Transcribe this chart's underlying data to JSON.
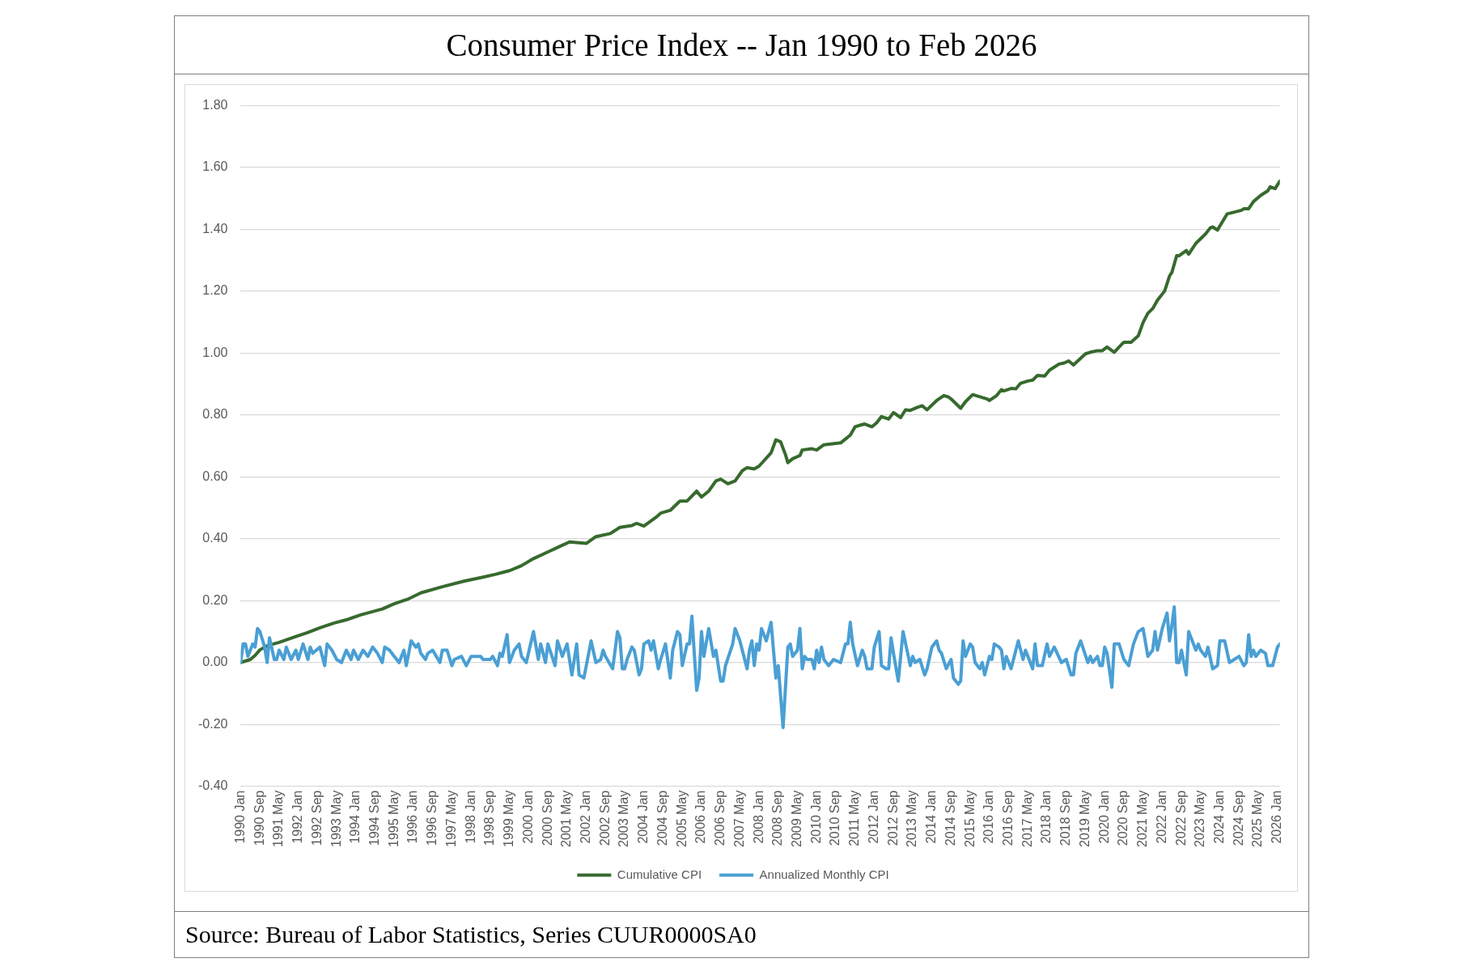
{
  "chart_data": {
    "type": "line",
    "title": "Consumer Price Index -- Jan 1990 to Feb 2026",
    "annotations": [
      "Source: Bureau of Labor Statistics, Series CUUR0000SA0"
    ],
    "xlim": [
      "1990-01",
      "2026-02"
    ],
    "xticks": [
      {
        "value": "1990-01",
        "label": "1990 Jan"
      },
      {
        "value": "1990-09",
        "label": "1990 Sep"
      },
      {
        "value": "1991-05",
        "label": "1991 May"
      },
      {
        "value": "1992-01",
        "label": "1992 Jan"
      },
      {
        "value": "1992-09",
        "label": "1992 Sep"
      },
      {
        "value": "1993-05",
        "label": "1993 May"
      },
      {
        "value": "1994-01",
        "label": "1994 Jan"
      },
      {
        "value": "1994-09",
        "label": "1994 Sep"
      },
      {
        "value": "1995-05",
        "label": "1995 May"
      },
      {
        "value": "1996-01",
        "label": "1996 Jan"
      },
      {
        "value": "1996-09",
        "label": "1996 Sep"
      },
      {
        "value": "1997-05",
        "label": "1997 May"
      },
      {
        "value": "1998-01",
        "label": "1998 Jan"
      },
      {
        "value": "1998-09",
        "label": "1998 Sep"
      },
      {
        "value": "1999-05",
        "label": "1999 May"
      },
      {
        "value": "2000-01",
        "label": "2000 Jan"
      },
      {
        "value": "2000-09",
        "label": "2000 Sep"
      },
      {
        "value": "2001-05",
        "label": "2001 May"
      },
      {
        "value": "2002-01",
        "label": "2002 Jan"
      },
      {
        "value": "2002-09",
        "label": "2002 Sep"
      },
      {
        "value": "2003-05",
        "label": "2003 May"
      },
      {
        "value": "2004-01",
        "label": "2004 Jan"
      },
      {
        "value": "2004-09",
        "label": "2004 Sep"
      },
      {
        "value": "2005-05",
        "label": "2005 May"
      },
      {
        "value": "2006-01",
        "label": "2006 Jan"
      },
      {
        "value": "2006-09",
        "label": "2006 Sep"
      },
      {
        "value": "2007-05",
        "label": "2007 May"
      },
      {
        "value": "2008-01",
        "label": "2008 Jan"
      },
      {
        "value": "2008-09",
        "label": "2008 Sep"
      },
      {
        "value": "2009-05",
        "label": "2009 May"
      },
      {
        "value": "2010-01",
        "label": "2010 Jan"
      },
      {
        "value": "2010-09",
        "label": "2010 Sep"
      },
      {
        "value": "2011-05",
        "label": "2011 May"
      },
      {
        "value": "2012-01",
        "label": "2012 Jan"
      },
      {
        "value": "2012-09",
        "label": "2012 Sep"
      },
      {
        "value": "2013-05",
        "label": "2013 May"
      },
      {
        "value": "2014-01",
        "label": "2014 Jan"
      },
      {
        "value": "2014-09",
        "label": "2014 Sep"
      },
      {
        "value": "2015-05",
        "label": "2015 May"
      },
      {
        "value": "2016-01",
        "label": "2016 Jan"
      },
      {
        "value": "2016-09",
        "label": "2016 Sep"
      },
      {
        "value": "2017-05",
        "label": "2017 May"
      },
      {
        "value": "2018-01",
        "label": "2018 Jan"
      },
      {
        "value": "2018-09",
        "label": "2018 Sep"
      },
      {
        "value": "2019-05",
        "label": "2019 May"
      },
      {
        "value": "2020-01",
        "label": "2020 Jan"
      },
      {
        "value": "2020-09",
        "label": "2020 Sep"
      },
      {
        "value": "2021-05",
        "label": "2021 May"
      },
      {
        "value": "2022-01",
        "label": "2022 Jan"
      },
      {
        "value": "2022-09",
        "label": "2022 Sep"
      },
      {
        "value": "2023-05",
        "label": "2023 May"
      },
      {
        "value": "2024-01",
        "label": "2024 Jan"
      },
      {
        "value": "2024-09",
        "label": "2024 Sep"
      },
      {
        "value": "2025-05",
        "label": "2025 May"
      },
      {
        "value": "2026-01",
        "label": "2026 Jan"
      }
    ],
    "ylim": [
      -0.4,
      1.8
    ],
    "yticks": [
      {
        "value": -0.4,
        "label": "-0.40"
      },
      {
        "value": -0.2,
        "label": "-0.20"
      },
      {
        "value": 0,
        "label": "0.00"
      },
      {
        "value": 0.2,
        "label": "0.20"
      },
      {
        "value": 0.4,
        "label": "0.40"
      },
      {
        "value": 0.6,
        "label": "0.60"
      },
      {
        "value": 0.8,
        "label": "0.80"
      },
      {
        "value": 1,
        "label": "1.00"
      },
      {
        "value": 1.2,
        "label": "1.20"
      },
      {
        "value": 1.4,
        "label": "1.40"
      },
      {
        "value": 1.6,
        "label": "1.60"
      },
      {
        "value": 1.8,
        "label": "1.80"
      }
    ],
    "grid": "y",
    "legend": "bottom",
    "marker": "none",
    "line_style": "solid",
    "series": [
      {
        "name": "Cumulative CPI",
        "color": "#376a2e",
        "x": [
          "1990-01",
          "1990-05",
          "1990-07",
          "1990-09",
          "1990-12",
          "1991-05",
          "1991-12",
          "1992-05",
          "1992-10",
          "1993-04",
          "1993-09",
          "1994-03",
          "1994-12",
          "1995-05",
          "1995-11",
          "1996-04",
          "1997-01",
          "1997-10",
          "1998-06",
          "1998-11",
          "1999-03",
          "1999-05",
          "1999-10",
          "2000-03",
          "2000-10",
          "2001-01",
          "2001-06",
          "2001-10",
          "2002-01",
          "2002-05",
          "2002-11",
          "2003-03",
          "2003-08",
          "2003-10",
          "2004-01",
          "2004-06",
          "2004-08",
          "2004-12",
          "2005-04",
          "2005-07",
          "2005-11",
          "2006-01",
          "2006-04",
          "2006-07",
          "2006-09",
          "2006-12",
          "2007-03",
          "2007-06",
          "2007-08",
          "2007-11",
          "2008-01",
          "2008-03",
          "2008-06",
          "2008-08",
          "2008-10",
          "2008-12",
          "2009-01",
          "2009-03",
          "2009-06",
          "2009-07",
          "2009-11",
          "2010-01",
          "2010-04",
          "2010-11",
          "2011-03",
          "2011-05",
          "2011-07",
          "2011-09",
          "2011-12",
          "2012-02",
          "2012-04",
          "2012-07",
          "2012-09",
          "2012-12",
          "2013-02",
          "2013-04",
          "2013-07",
          "2013-09",
          "2013-11",
          "2014-03",
          "2014-06",
          "2014-08",
          "2014-09",
          "2015-01",
          "2015-03",
          "2015-06",
          "2015-12",
          "2016-01",
          "2016-04",
          "2016-06",
          "2016-07",
          "2016-10",
          "2016-12",
          "2017-02",
          "2017-05",
          "2017-07",
          "2017-09",
          "2017-12",
          "2018-02",
          "2018-06",
          "2018-08",
          "2018-10",
          "2018-12",
          "2019-05",
          "2019-07",
          "2019-10",
          "2019-12",
          "2020-02",
          "2020-05",
          "2020-08",
          "2020-09",
          "2020-12",
          "2021-03",
          "2021-05",
          "2021-07",
          "2021-09",
          "2021-11",
          "2022-02",
          "2022-04",
          "2022-05",
          "2022-07",
          "2022-08",
          "2022-11",
          "2022-12",
          "2023-03",
          "2023-07",
          "2023-09",
          "2023-10",
          "2023-12",
          "2024-04",
          "2024-10",
          "2024-11",
          "2025-01",
          "2025-03",
          "2025-06",
          "2025-09",
          "2025-10",
          "2025-12",
          "2026-02"
        ],
        "values": [
          0,
          0.01,
          0.023,
          0.041,
          0.054,
          0.065,
          0.084,
          0.097,
          0.112,
          0.128,
          0.138,
          0.154,
          0.173,
          0.19,
          0.206,
          0.225,
          0.245,
          0.263,
          0.276,
          0.285,
          0.293,
          0.297,
          0.313,
          0.336,
          0.361,
          0.372,
          0.39,
          0.387,
          0.385,
          0.407,
          0.417,
          0.437,
          0.443,
          0.45,
          0.441,
          0.469,
          0.483,
          0.492,
          0.522,
          0.522,
          0.554,
          0.535,
          0.554,
          0.587,
          0.593,
          0.578,
          0.587,
          0.62,
          0.63,
          0.626,
          0.635,
          0.652,
          0.678,
          0.72,
          0.713,
          0.672,
          0.646,
          0.659,
          0.669,
          0.687,
          0.691,
          0.687,
          0.704,
          0.71,
          0.735,
          0.762,
          0.767,
          0.771,
          0.762,
          0.775,
          0.795,
          0.787,
          0.808,
          0.792,
          0.817,
          0.815,
          0.825,
          0.83,
          0.817,
          0.847,
          0.863,
          0.858,
          0.852,
          0.822,
          0.843,
          0.866,
          0.852,
          0.847,
          0.863,
          0.882,
          0.878,
          0.886,
          0.885,
          0.903,
          0.91,
          0.913,
          0.928,
          0.926,
          0.945,
          0.965,
          0.968,
          0.975,
          0.962,
          0.998,
          1.003,
          1.008,
          1.008,
          1.02,
          1.003,
          1.028,
          1.035,
          1.035,
          1.056,
          1.099,
          1.129,
          1.144,
          1.171,
          1.201,
          1.249,
          1.261,
          1.315,
          1.315,
          1.332,
          1.32,
          1.355,
          1.385,
          1.405,
          1.408,
          1.398,
          1.45,
          1.462,
          1.467,
          1.467,
          1.49,
          1.51,
          1.525,
          1.538,
          1.532,
          1.556
        ]
      },
      {
        "name": "Annualized Monthly CPI",
        "color": "#4a9fd4",
        "x": [
          "1990-01",
          "1990-02",
          "1990-03",
          "1990-04",
          "1990-06",
          "1990-07",
          "1990-08",
          "1990-09",
          "1990-11",
          "1990-12",
          "1991-01",
          "1991-03",
          "1991-04",
          "1991-05",
          "1991-07",
          "1991-08",
          "1991-10",
          "1991-12",
          "1992-01",
          "1992-03",
          "1992-05",
          "1992-06",
          "1992-07",
          "1992-10",
          "1992-12",
          "1993-01",
          "1993-03",
          "1993-05",
          "1993-07",
          "1993-09",
          "1993-11",
          "1993-12",
          "1994-02",
          "1994-04",
          "1994-06",
          "1994-08",
          "1994-10",
          "1994-12",
          "1995-01",
          "1995-03",
          "1995-05",
          "1995-07",
          "1995-09",
          "1995-10",
          "1995-12",
          "1996-02",
          "1996-03",
          "1996-04",
          "1996-06",
          "1996-07",
          "1996-09",
          "1996-12",
          "1997-01",
          "1997-03",
          "1997-05",
          "1997-06",
          "1997-09",
          "1997-11",
          "1998-01",
          "1998-05",
          "1998-06",
          "1998-09",
          "1998-10",
          "1998-12",
          "1999-01",
          "1999-02",
          "1999-04",
          "1999-05",
          "1999-07",
          "1999-09",
          "1999-10",
          "1999-12",
          "2000-03",
          "2000-05",
          "2000-06",
          "2000-08",
          "2000-09",
          "2000-12",
          "2001-01",
          "2001-03",
          "2001-05",
          "2001-07",
          "2001-09",
          "2001-10",
          "2001-12",
          "2002-03",
          "2002-05",
          "2002-07",
          "2002-08",
          "2002-09",
          "2002-12",
          "2003-02",
          "2003-03",
          "2003-04",
          "2003-05",
          "2003-06",
          "2003-08",
          "2003-09",
          "2003-11",
          "2003-12",
          "2004-01",
          "2004-03",
          "2004-04",
          "2004-05",
          "2004-07",
          "2004-08",
          "2004-10",
          "2004-12",
          "2005-01",
          "2005-03",
          "2005-04",
          "2005-05",
          "2005-07",
          "2005-08",
          "2005-09",
          "2005-11",
          "2005-12",
          "2006-01",
          "2006-02",
          "2006-04",
          "2006-06",
          "2006-07",
          "2006-09",
          "2006-10",
          "2006-11",
          "2007-02",
          "2007-03",
          "2007-05",
          "2007-08",
          "2007-09",
          "2007-10",
          "2007-11",
          "2007-12",
          "2008-01",
          "2008-02",
          "2008-04",
          "2008-06",
          "2008-08",
          "2008-09",
          "2008-11",
          "2009-01",
          "2009-02",
          "2009-03",
          "2009-05",
          "2009-06",
          "2009-07",
          "2009-08",
          "2009-09",
          "2009-11",
          "2009-12",
          "2010-01",
          "2010-02",
          "2010-03",
          "2010-04",
          "2010-06",
          "2010-08",
          "2010-11",
          "2011-01",
          "2011-02",
          "2011-03",
          "2011-04",
          "2011-06",
          "2011-08",
          "2011-09",
          "2011-10",
          "2011-11",
          "2011-12",
          "2012-01",
          "2012-03",
          "2012-04",
          "2012-06",
          "2012-07",
          "2012-08",
          "2012-09",
          "2012-11",
          "2013-01",
          "2013-04",
          "2013-05",
          "2013-06",
          "2013-08",
          "2013-10",
          "2013-11",
          "2014-01",
          "2014-03",
          "2014-04",
          "2014-05",
          "2014-07",
          "2014-09",
          "2014-10",
          "2014-12",
          "2015-01",
          "2015-02",
          "2015-03",
          "2015-05",
          "2015-06",
          "2015-07",
          "2015-09",
          "2015-10",
          "2015-11",
          "2016-01",
          "2016-02",
          "2016-03",
          "2016-05",
          "2016-06",
          "2016-07",
          "2016-08",
          "2016-10",
          "2017-01",
          "2017-03",
          "2017-04",
          "2017-07",
          "2017-08",
          "2017-09",
          "2017-11",
          "2018-01",
          "2018-02",
          "2018-04",
          "2018-07",
          "2018-09",
          "2018-11",
          "2018-12",
          "2019-01",
          "2019-03",
          "2019-06",
          "2019-07",
          "2019-08",
          "2019-10",
          "2019-11",
          "2019-12",
          "2020-01",
          "2020-02",
          "2020-04",
          "2020-05",
          "2020-07",
          "2020-09",
          "2020-11",
          "2021-01",
          "2021-03",
          "2021-05",
          "2021-07",
          "2021-09",
          "2021-10",
          "2021-11",
          "2022-01",
          "2022-03",
          "2022-04",
          "2022-05",
          "2022-06",
          "2022-07",
          "2022-08",
          "2022-09",
          "2022-11",
          "2022-12",
          "2023-03",
          "2023-04",
          "2023-05",
          "2023-07",
          "2023-08",
          "2023-10",
          "2023-12",
          "2024-01",
          "2024-03",
          "2024-05",
          "2024-07",
          "2024-09",
          "2024-11",
          "2024-12",
          "2025-01",
          "2025-02",
          "2025-03",
          "2025-04",
          "2025-06",
          "2025-08",
          "2025-09",
          "2025-11",
          "2026-01",
          "2026-02"
        ],
        "values": [
          0,
          0.06,
          0.06,
          0.02,
          0.06,
          0.05,
          0.11,
          0.1,
          0.05,
          0,
          0.08,
          0.01,
          0.01,
          0.04,
          0.01,
          0.05,
          0.01,
          0.04,
          0.01,
          0.06,
          0.01,
          0.05,
          0.03,
          0.05,
          -0.01,
          0.06,
          0.04,
          0.01,
          0,
          0.04,
          0.01,
          0.04,
          0.01,
          0.04,
          0.02,
          0.05,
          0.03,
          0,
          0.05,
          0.04,
          0.02,
          0,
          0.04,
          -0.01,
          0.07,
          0.05,
          0.06,
          0.03,
          0.01,
          0.03,
          0.04,
          0,
          0.04,
          0.04,
          -0.01,
          0.01,
          0.02,
          -0.01,
          0.02,
          0.02,
          0.01,
          0.01,
          0.02,
          -0.01,
          0.03,
          0.02,
          0.09,
          0,
          0.04,
          0.06,
          0.02,
          0,
          0.1,
          0.01,
          0.06,
          0,
          0.06,
          -0.01,
          0.07,
          0.02,
          0.06,
          -0.04,
          0.06,
          -0.04,
          -0.05,
          0.07,
          0,
          0.01,
          0.04,
          0.02,
          -0.02,
          0.1,
          0.08,
          -0.02,
          -0.02,
          0.01,
          0.05,
          0.04,
          -0.04,
          -0.02,
          0.06,
          0.07,
          0.04,
          0.07,
          -0.02,
          0.01,
          0.06,
          -0.05,
          0.04,
          0.1,
          0.09,
          -0.01,
          0.06,
          0.06,
          0.15,
          -0.09,
          -0.05,
          0.1,
          0.02,
          0.11,
          0.02,
          0.04,
          -0.06,
          -0.06,
          -0.01,
          0.06,
          0.11,
          0.07,
          -0.02,
          0.04,
          0.07,
          -0.01,
          0.06,
          0.04,
          0.11,
          0.07,
          0.13,
          -0.05,
          -0.01,
          -0.21,
          0.05,
          0.06,
          0.02,
          0.04,
          0.11,
          -0.02,
          0.02,
          0.01,
          0.01,
          -0.02,
          0.04,
          0,
          0.05,
          0.01,
          -0.01,
          0.01,
          0,
          0.06,
          0.06,
          0.13,
          0.06,
          -0.01,
          0.04,
          0.02,
          -0.02,
          -0.02,
          -0.02,
          0.05,
          0.1,
          -0.01,
          -0.02,
          -0.02,
          0.08,
          0.03,
          -0.06,
          0.1,
          -0.01,
          0.02,
          0,
          0.01,
          -0.04,
          -0.02,
          0.05,
          0.07,
          0.04,
          0.03,
          -0.02,
          0.01,
          -0.05,
          -0.07,
          -0.06,
          0.07,
          0.02,
          0.06,
          0.05,
          0,
          -0.02,
          0,
          -0.04,
          0.02,
          0.01,
          0.06,
          0.05,
          0.04,
          -0.02,
          0.02,
          -0.02,
          0.07,
          0.01,
          0.04,
          -0.02,
          0.06,
          -0.01,
          -0.01,
          0.06,
          0.02,
          0.05,
          0,
          0.01,
          -0.04,
          -0.04,
          0.03,
          0.07,
          0,
          0.02,
          0,
          0.02,
          -0.01,
          -0.01,
          0.05,
          0.03,
          -0.08,
          0.06,
          0.06,
          0.01,
          -0.01,
          0.06,
          0.1,
          0.11,
          0.02,
          0.04,
          0.1,
          0.04,
          0.11,
          0.16,
          0.07,
          0.12,
          0.18,
          0,
          0,
          0.04,
          -0.04,
          0.1,
          0.04,
          0.06,
          0.04,
          0.02,
          0.05,
          -0.02,
          -0.01,
          0.07,
          0.07,
          0,
          0.01,
          0.02,
          -0.01,
          0,
          0.09,
          0.02,
          0.04,
          0.02,
          0.04,
          0.03,
          -0.01,
          -0.01,
          0.05,
          0.06
        ]
      }
    ]
  }
}
